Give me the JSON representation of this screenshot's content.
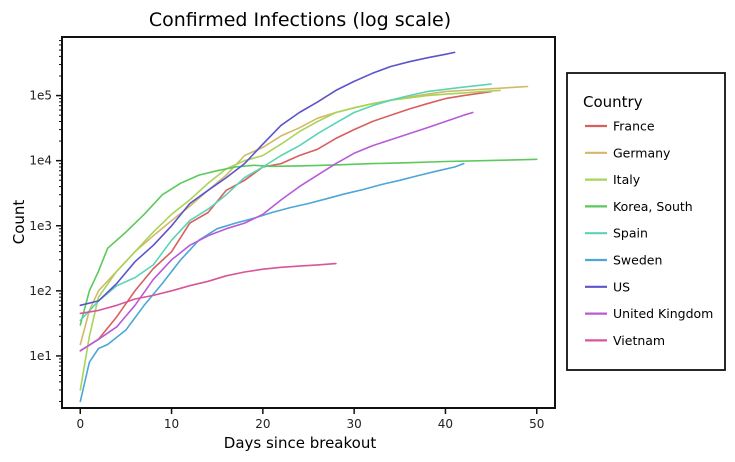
{
  "chart_data": {
    "type": "line",
    "title": "Confirmed Infections (log scale)",
    "xlabel": "Days since breakout",
    "ylabel": "Count",
    "yscale": "log",
    "xlim": [
      -2,
      52
    ],
    "ylim_log10": [
      0.2,
      5.9
    ],
    "x_ticks": [
      0,
      10,
      20,
      30,
      40,
      50
    ],
    "y_ticks": [
      {
        "value": 10,
        "label": "1e1"
      },
      {
        "value": 100,
        "label": "1e2"
      },
      {
        "value": 1000,
        "label": "1e3"
      },
      {
        "value": 10000,
        "label": "1e4"
      },
      {
        "value": 100000,
        "label": "1e5"
      }
    ],
    "grid": false,
    "legend": {
      "title": "Country",
      "placement": "right"
    },
    "series": [
      {
        "name": "France",
        "color": "#d95f5f",
        "points": [
          [
            0,
            12
          ],
          [
            2,
            18
          ],
          [
            4,
            40
          ],
          [
            6,
            100
          ],
          [
            8,
            220
          ],
          [
            10,
            400
          ],
          [
            12,
            1100
          ],
          [
            14,
            1600
          ],
          [
            16,
            3500
          ],
          [
            18,
            5000
          ],
          [
            20,
            8000
          ],
          [
            22,
            9000
          ],
          [
            24,
            12000
          ],
          [
            26,
            15000
          ],
          [
            28,
            22000
          ],
          [
            30,
            30000
          ],
          [
            32,
            40000
          ],
          [
            34,
            50000
          ],
          [
            36,
            62000
          ],
          [
            38,
            75000
          ],
          [
            40,
            90000
          ],
          [
            42,
            100000
          ],
          [
            44,
            110000
          ],
          [
            45,
            115000
          ]
        ]
      },
      {
        "name": "Germany",
        "color": "#d4b86a",
        "points": [
          [
            0,
            15
          ],
          [
            1,
            50
          ],
          [
            2,
            100
          ],
          [
            4,
            200
          ],
          [
            6,
            400
          ],
          [
            8,
            700
          ],
          [
            10,
            1200
          ],
          [
            12,
            2000
          ],
          [
            14,
            3500
          ],
          [
            16,
            6000
          ],
          [
            18,
            12000
          ],
          [
            20,
            16000
          ],
          [
            22,
            24000
          ],
          [
            24,
            32000
          ],
          [
            26,
            45000
          ],
          [
            28,
            55000
          ],
          [
            30,
            65000
          ],
          [
            32,
            75000
          ],
          [
            34,
            85000
          ],
          [
            36,
            95000
          ],
          [
            38,
            105000
          ],
          [
            40,
            115000
          ],
          [
            42,
            120000
          ],
          [
            44,
            125000
          ],
          [
            46,
            130000
          ],
          [
            48,
            135000
          ],
          [
            49,
            138000
          ]
        ]
      },
      {
        "name": "Italy",
        "color": "#a8d45a",
        "points": [
          [
            0,
            3
          ],
          [
            1,
            20
          ],
          [
            2,
            80
          ],
          [
            4,
            200
          ],
          [
            6,
            400
          ],
          [
            8,
            800
          ],
          [
            10,
            1500
          ],
          [
            12,
            2500
          ],
          [
            14,
            4500
          ],
          [
            16,
            7500
          ],
          [
            18,
            10000
          ],
          [
            20,
            12000
          ],
          [
            22,
            18000
          ],
          [
            24,
            28000
          ],
          [
            26,
            40000
          ],
          [
            28,
            55000
          ],
          [
            30,
            65000
          ],
          [
            32,
            75000
          ],
          [
            34,
            85000
          ],
          [
            36,
            92000
          ],
          [
            38,
            100000
          ],
          [
            40,
            105000
          ],
          [
            42,
            110000
          ],
          [
            44,
            115000
          ],
          [
            46,
            120000
          ]
        ]
      },
      {
        "name": "Korea, South",
        "color": "#5cc95c",
        "points": [
          [
            0,
            30
          ],
          [
            1,
            100
          ],
          [
            2,
            200
          ],
          [
            3,
            450
          ],
          [
            5,
            800
          ],
          [
            7,
            1500
          ],
          [
            9,
            3000
          ],
          [
            11,
            4500
          ],
          [
            13,
            6000
          ],
          [
            15,
            7000
          ],
          [
            17,
            8000
          ],
          [
            19,
            8500
          ],
          [
            21,
            8200
          ],
          [
            24,
            8300
          ],
          [
            28,
            8600
          ],
          [
            32,
            9000
          ],
          [
            36,
            9300
          ],
          [
            40,
            9700
          ],
          [
            44,
            10000
          ],
          [
            48,
            10300
          ],
          [
            50,
            10500
          ]
        ]
      },
      {
        "name": "Spain",
        "color": "#5ad4b4",
        "points": [
          [
            0,
            35
          ],
          [
            2,
            70
          ],
          [
            4,
            120
          ],
          [
            6,
            160
          ],
          [
            8,
            250
          ],
          [
            10,
            600
          ],
          [
            12,
            1200
          ],
          [
            14,
            1800
          ],
          [
            16,
            3000
          ],
          [
            18,
            5500
          ],
          [
            20,
            8000
          ],
          [
            22,
            12000
          ],
          [
            24,
            17000
          ],
          [
            26,
            26000
          ],
          [
            28,
            38000
          ],
          [
            30,
            55000
          ],
          [
            32,
            70000
          ],
          [
            34,
            85000
          ],
          [
            36,
            100000
          ],
          [
            38,
            115000
          ],
          [
            40,
            125000
          ],
          [
            42,
            135000
          ],
          [
            44,
            145000
          ],
          [
            45,
            150000
          ]
        ]
      },
      {
        "name": "Sweden",
        "color": "#4da6d8",
        "points": [
          [
            0,
            2
          ],
          [
            1,
            8
          ],
          [
            2,
            13
          ],
          [
            3,
            15
          ],
          [
            5,
            25
          ],
          [
            7,
            60
          ],
          [
            9,
            130
          ],
          [
            11,
            300
          ],
          [
            13,
            600
          ],
          [
            15,
            900
          ],
          [
            17,
            1100
          ],
          [
            19,
            1300
          ],
          [
            21,
            1600
          ],
          [
            23,
            1900
          ],
          [
            25,
            2200
          ],
          [
            27,
            2600
          ],
          [
            29,
            3100
          ],
          [
            31,
            3600
          ],
          [
            33,
            4300
          ],
          [
            35,
            5000
          ],
          [
            37,
            5900
          ],
          [
            39,
            6900
          ],
          [
            41,
            8000
          ],
          [
            42,
            9000
          ]
        ]
      },
      {
        "name": "US",
        "color": "#5b55cc",
        "points": [
          [
            0,
            60
          ],
          [
            2,
            70
          ],
          [
            4,
            130
          ],
          [
            6,
            280
          ],
          [
            8,
            500
          ],
          [
            10,
            1000
          ],
          [
            12,
            2200
          ],
          [
            14,
            3500
          ],
          [
            16,
            5500
          ],
          [
            18,
            9000
          ],
          [
            20,
            18000
          ],
          [
            22,
            35000
          ],
          [
            24,
            55000
          ],
          [
            26,
            80000
          ],
          [
            28,
            120000
          ],
          [
            30,
            165000
          ],
          [
            32,
            220000
          ],
          [
            34,
            280000
          ],
          [
            36,
            330000
          ],
          [
            38,
            380000
          ],
          [
            40,
            430000
          ],
          [
            41,
            460000
          ]
        ]
      },
      {
        "name": "United Kingdom",
        "color": "#b85ad8",
        "points": [
          [
            0,
            12
          ],
          [
            2,
            18
          ],
          [
            4,
            28
          ],
          [
            6,
            60
          ],
          [
            8,
            150
          ],
          [
            10,
            300
          ],
          [
            12,
            500
          ],
          [
            14,
            700
          ],
          [
            16,
            900
          ],
          [
            18,
            1100
          ],
          [
            20,
            1500
          ],
          [
            22,
            2500
          ],
          [
            24,
            4000
          ],
          [
            26,
            6000
          ],
          [
            28,
            9000
          ],
          [
            30,
            13000
          ],
          [
            32,
            17000
          ],
          [
            34,
            21000
          ],
          [
            36,
            26000
          ],
          [
            38,
            32000
          ],
          [
            40,
            40000
          ],
          [
            42,
            50000
          ],
          [
            43,
            55000
          ]
        ]
      },
      {
        "name": "Vietnam",
        "color": "#d8559a",
        "points": [
          [
            0,
            45
          ],
          [
            2,
            50
          ],
          [
            4,
            60
          ],
          [
            6,
            75
          ],
          [
            8,
            85
          ],
          [
            10,
            100
          ],
          [
            12,
            120
          ],
          [
            14,
            140
          ],
          [
            16,
            170
          ],
          [
            18,
            195
          ],
          [
            20,
            215
          ],
          [
            22,
            230
          ],
          [
            24,
            240
          ],
          [
            26,
            250
          ],
          [
            28,
            262
          ]
        ]
      }
    ]
  }
}
